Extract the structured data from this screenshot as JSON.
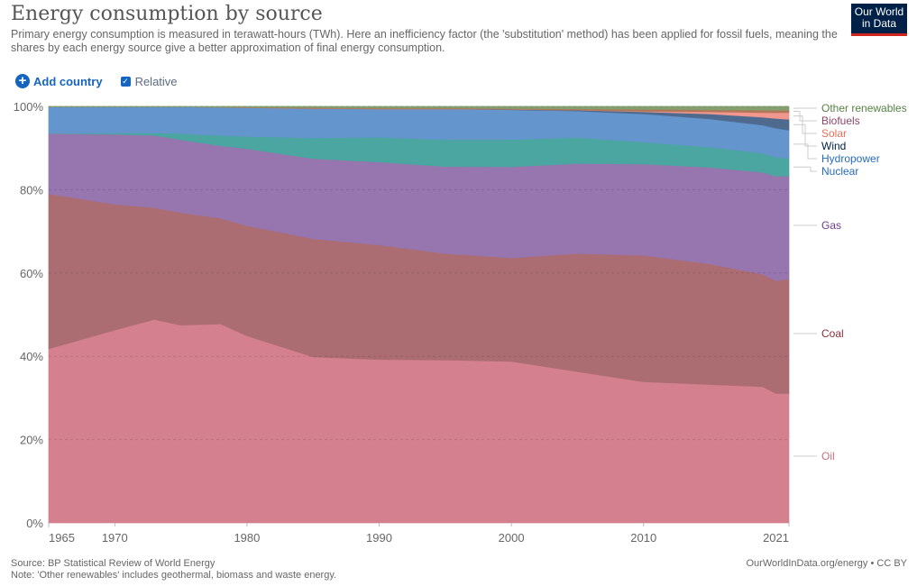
{
  "header": {
    "title": "Energy consumption by source",
    "subtitle": "Primary energy consumption is measured in terawatt-hours (TWh). Here an inefficiency factor (the 'substitution' method) has been applied for fossil fuels, meaning the shares by each energy source give a better approximation of final energy consumption.",
    "logo_line1": "Our World",
    "logo_line2": "in Data"
  },
  "controls": {
    "add_country_label": "Add country",
    "add_icon": "plus-circle-icon",
    "relative_label": "Relative",
    "relative_checked": true
  },
  "footer": {
    "source": "Source: BP Statistical Review of World Energy",
    "note": "Note: 'Other renewables' includes geothermal, biomass and waste energy.",
    "credit": "OurWorldInData.org/energy • CC BY"
  },
  "chart_data": {
    "type": "area",
    "stacked": true,
    "relative": true,
    "title": "Energy consumption by source",
    "xlabel": "",
    "ylabel": "",
    "ylim": [
      0,
      100
    ],
    "xlim": [
      1965,
      2021
    ],
    "x_ticks": [
      "1965",
      "1970",
      "1980",
      "1990",
      "2000",
      "2010",
      "2021"
    ],
    "x_tick_values": [
      1965,
      1970,
      1980,
      1990,
      2000,
      2010,
      2021
    ],
    "y_ticks": [
      "0%",
      "20%",
      "40%",
      "60%",
      "80%",
      "100%"
    ],
    "y_tick_values": [
      0,
      20,
      40,
      60,
      80,
      100
    ],
    "grid": "horizontal-dashed",
    "legend": "right-inline",
    "x": [
      1965,
      1970,
      1973,
      1975,
      1978,
      1980,
      1985,
      1990,
      1995,
      2000,
      2005,
      2010,
      2015,
      2019,
      2020,
      2021
    ],
    "series": [
      {
        "name": "Oil",
        "color": "#d4808f",
        "label_color": "#c8727c",
        "values": [
          41.8,
          46.3,
          49.2,
          47.5,
          48.0,
          45.0,
          40.0,
          39.4,
          39.3,
          39.0,
          36.5,
          34.0,
          33.4,
          32.9,
          31.0,
          31.0
        ]
      },
      {
        "name": "Coal",
        "color": "#ab6d72",
        "label_color": "#883039",
        "values": [
          37.2,
          30.2,
          27.0,
          27.0,
          25.5,
          26.5,
          28.5,
          27.6,
          25.7,
          25.0,
          28.5,
          30.5,
          29.1,
          27.1,
          27.0,
          27.5
        ]
      },
      {
        "name": "Gas",
        "color": "#9775ae",
        "label_color": "#6d3e91",
        "values": [
          14.5,
          16.8,
          17.5,
          17.5,
          17.5,
          18.5,
          19.3,
          20.0,
          21.0,
          22.0,
          21.7,
          22.0,
          23.3,
          24.6,
          25.0,
          24.7
        ]
      },
      {
        "name": "Nuclear",
        "color": "#4ba5a1",
        "label_color": "#286bbb",
        "values": [
          0.1,
          0.3,
          0.6,
          1.5,
          2.5,
          3.0,
          5.0,
          6.0,
          6.5,
          6.6,
          6.3,
          5.3,
          4.9,
          4.6,
          4.5,
          4.3
        ]
      },
      {
        "name": "Hydropower",
        "color": "#6595cd",
        "label_color": "#286bbb",
        "values": [
          6.3,
          6.3,
          6.3,
          6.4,
          6.8,
          6.9,
          7.1,
          6.8,
          7.4,
          7.2,
          6.4,
          6.8,
          6.8,
          6.8,
          7.0,
          6.7
        ]
      },
      {
        "name": "Wind",
        "color": "#4e6a8f",
        "label_color": "#002147",
        "values": [
          0.0,
          0.0,
          0.0,
          0.0,
          0.0,
          0.0,
          0.0,
          0.0,
          0.0,
          0.1,
          0.2,
          0.5,
          1.2,
          1.9,
          2.3,
          2.6
        ]
      },
      {
        "name": "Solar",
        "color": "#f1978d",
        "label_color": "#e56e5a",
        "values": [
          0.0,
          0.0,
          0.0,
          0.0,
          0.0,
          0.0,
          0.0,
          0.0,
          0.0,
          0.0,
          0.0,
          0.1,
          0.5,
          1.1,
          1.4,
          1.6
        ]
      },
      {
        "name": "Biofuels",
        "color": "#b0775a",
        "label_color": "#8c4569",
        "values": [
          0.0,
          0.0,
          0.0,
          0.0,
          0.0,
          0.1,
          0.2,
          0.2,
          0.2,
          0.2,
          0.3,
          0.5,
          0.5,
          0.6,
          0.6,
          0.6
        ]
      },
      {
        "name": "Other renewables",
        "color": "#83a06e",
        "label_color": "#578145",
        "values": [
          0.1,
          0.1,
          0.1,
          0.1,
          0.2,
          0.2,
          0.3,
          0.4,
          0.4,
          0.5,
          0.6,
          0.7,
          0.8,
          0.9,
          0.9,
          0.9
        ]
      }
    ]
  }
}
